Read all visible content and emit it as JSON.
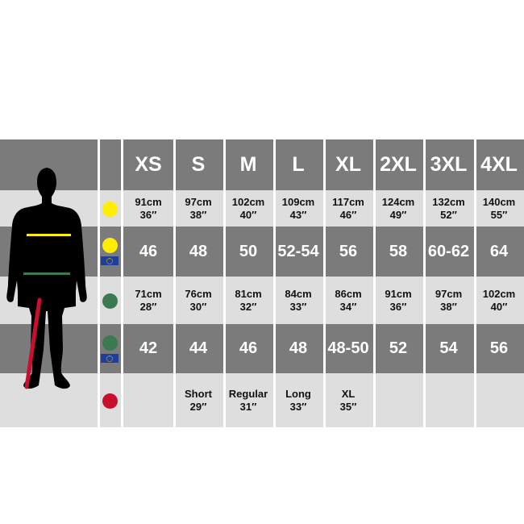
{
  "colors": {
    "chest": "#ffee00",
    "waist": "#3a7a4e",
    "inseam": "#c8102e",
    "dark_row": "#7b7b7b",
    "light_row": "#dedede",
    "eu_flag": "#1f3f9a"
  },
  "sizes": [
    "XS",
    "S",
    "M",
    "L",
    "XL",
    "2XL",
    "3XL",
    "4XL"
  ],
  "rows": [
    {
      "icon": "chest-dot-icon",
      "cells": [
        [
          "91cm",
          "36″"
        ],
        [
          "97cm",
          "38″"
        ],
        [
          "102cm",
          "40″"
        ],
        [
          "109cm",
          "43″"
        ],
        [
          "117cm",
          "46″"
        ],
        [
          "124cm",
          "49″"
        ],
        [
          "132cm",
          "52″"
        ],
        [
          "140cm",
          "55″"
        ]
      ]
    },
    {
      "icon": "chest-eu-icon",
      "cells": [
        [
          "46"
        ],
        [
          "48"
        ],
        [
          "50"
        ],
        [
          "52-54"
        ],
        [
          "56"
        ],
        [
          "58"
        ],
        [
          "60-62"
        ],
        [
          "64"
        ]
      ]
    },
    {
      "icon": "waist-dot-icon",
      "cells": [
        [
          "71cm",
          "28″"
        ],
        [
          "76cm",
          "30″"
        ],
        [
          "81cm",
          "32″"
        ],
        [
          "84cm",
          "33″"
        ],
        [
          "86cm",
          "34″"
        ],
        [
          "91cm",
          "36″"
        ],
        [
          "97cm",
          "38″"
        ],
        [
          "102cm",
          "40″"
        ]
      ]
    },
    {
      "icon": "waist-eu-icon",
      "cells": [
        [
          "42"
        ],
        [
          "44"
        ],
        [
          "46"
        ],
        [
          "48"
        ],
        [
          "48-50"
        ],
        [
          "52"
        ],
        [
          "54"
        ],
        [
          "56"
        ]
      ]
    },
    {
      "icon": "inseam-dot-icon",
      "cells": [
        [],
        [
          "Short",
          "29″"
        ],
        [
          "Regular",
          "31″"
        ],
        [
          "Long",
          "33″"
        ],
        [
          "XL",
          "35″"
        ],
        [],
        [],
        []
      ]
    }
  ]
}
